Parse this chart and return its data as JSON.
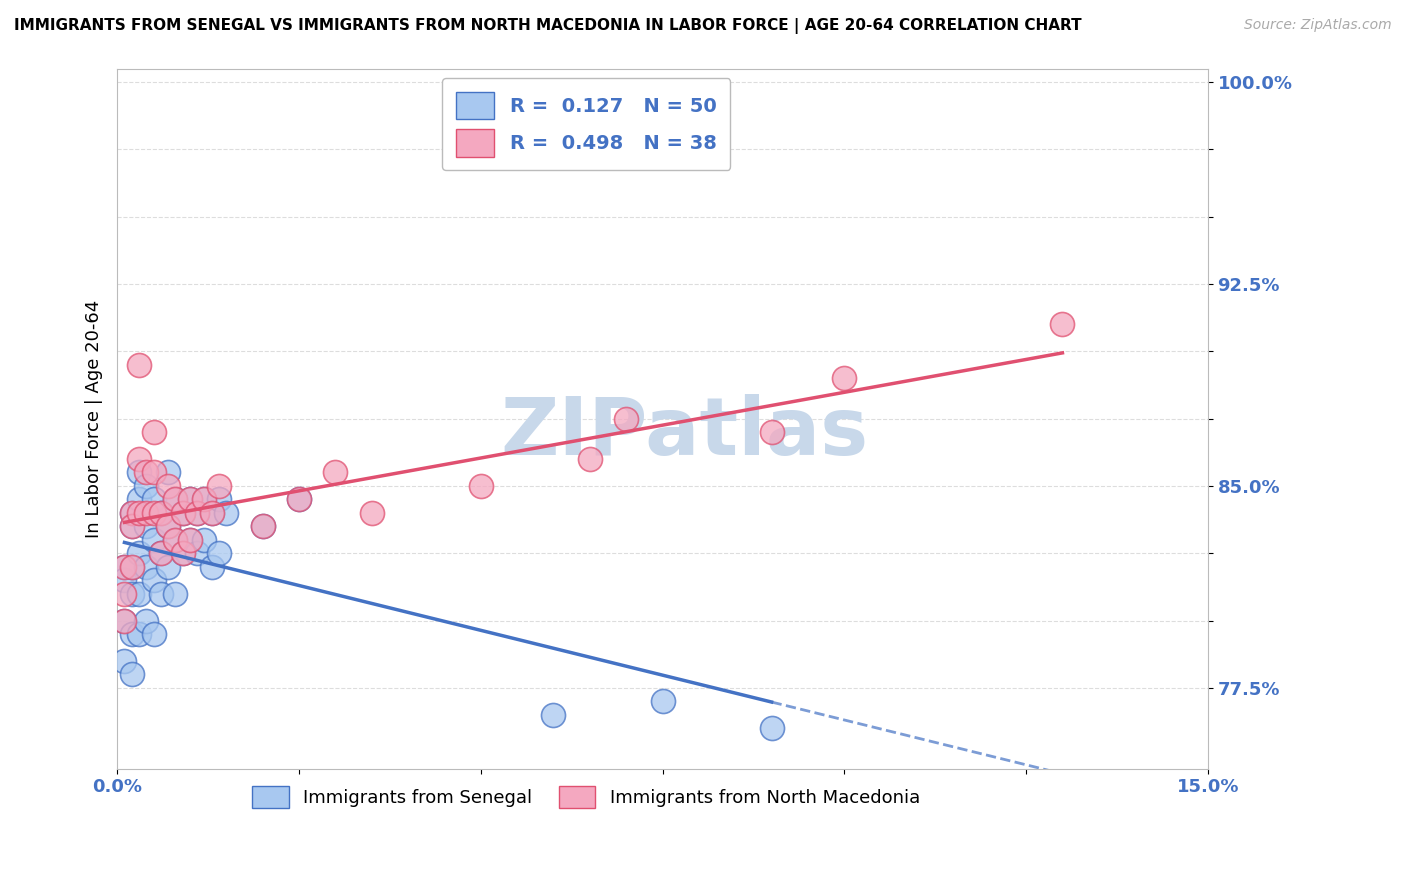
{
  "title": "IMMIGRANTS FROM SENEGAL VS IMMIGRANTS FROM NORTH MACEDONIA IN LABOR FORCE | AGE 20-64 CORRELATION CHART",
  "source": "Source: ZipAtlas.com",
  "ylabel": "In Labor Force | Age 20-64",
  "xlim": [
    0.0,
    0.15
  ],
  "ylim": [
    0.745,
    1.005
  ],
  "color_senegal": "#A8C8F0",
  "color_macedonia": "#F4A8C0",
  "line_color_senegal": "#4472C4",
  "line_color_macedonia": "#E05070",
  "R_senegal": 0.127,
  "N_senegal": 50,
  "R_macedonia": 0.498,
  "N_macedonia": 38,
  "watermark": "ZIPatlas",
  "watermark_color": "#C8D8EA",
  "background_color": "#FFFFFF",
  "grid_color": "#DDDDDD",
  "senegal_x": [
    0.001,
    0.001,
    0.001,
    0.001,
    0.002,
    0.002,
    0.002,
    0.002,
    0.002,
    0.002,
    0.003,
    0.003,
    0.003,
    0.003,
    0.003,
    0.004,
    0.004,
    0.004,
    0.004,
    0.005,
    0.005,
    0.005,
    0.005,
    0.006,
    0.006,
    0.006,
    0.007,
    0.007,
    0.007,
    0.008,
    0.008,
    0.008,
    0.009,
    0.009,
    0.01,
    0.01,
    0.011,
    0.011,
    0.012,
    0.012,
    0.013,
    0.013,
    0.014,
    0.014,
    0.015,
    0.02,
    0.025,
    0.06,
    0.075,
    0.09
  ],
  "senegal_y": [
    0.82,
    0.815,
    0.8,
    0.785,
    0.84,
    0.835,
    0.82,
    0.81,
    0.795,
    0.78,
    0.855,
    0.845,
    0.825,
    0.81,
    0.795,
    0.85,
    0.835,
    0.82,
    0.8,
    0.845,
    0.83,
    0.815,
    0.795,
    0.84,
    0.825,
    0.81,
    0.855,
    0.835,
    0.82,
    0.845,
    0.83,
    0.81,
    0.84,
    0.825,
    0.845,
    0.83,
    0.84,
    0.825,
    0.845,
    0.83,
    0.84,
    0.82,
    0.845,
    0.825,
    0.84,
    0.835,
    0.845,
    0.765,
    0.77,
    0.76
  ],
  "macedonia_x": [
    0.001,
    0.001,
    0.001,
    0.002,
    0.002,
    0.002,
    0.003,
    0.003,
    0.003,
    0.004,
    0.004,
    0.005,
    0.005,
    0.005,
    0.006,
    0.006,
    0.007,
    0.007,
    0.008,
    0.008,
    0.009,
    0.009,
    0.01,
    0.01,
    0.011,
    0.012,
    0.013,
    0.014,
    0.02,
    0.025,
    0.03,
    0.035,
    0.05,
    0.065,
    0.07,
    0.09,
    0.1,
    0.13
  ],
  "macedonia_y": [
    0.82,
    0.81,
    0.8,
    0.84,
    0.835,
    0.82,
    0.895,
    0.86,
    0.84,
    0.855,
    0.84,
    0.87,
    0.855,
    0.84,
    0.84,
    0.825,
    0.85,
    0.835,
    0.845,
    0.83,
    0.84,
    0.825,
    0.845,
    0.83,
    0.84,
    0.845,
    0.84,
    0.85,
    0.835,
    0.845,
    0.855,
    0.84,
    0.85,
    0.86,
    0.875,
    0.87,
    0.89,
    0.91
  ]
}
